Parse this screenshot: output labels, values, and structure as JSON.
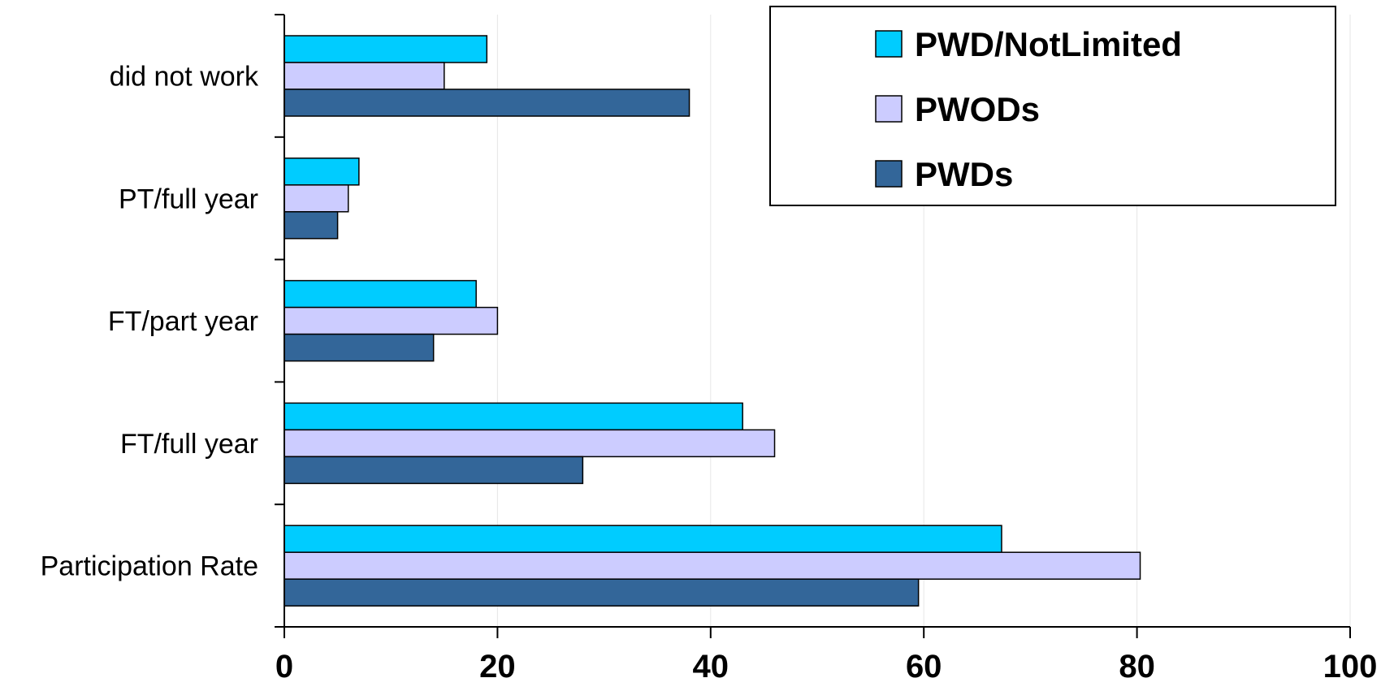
{
  "chart_data": {
    "type": "bar",
    "orientation": "horizontal",
    "categories": [
      "did not work",
      "PT/full year",
      "FT/part year",
      "FT/full year",
      "Participation Rate"
    ],
    "series": [
      {
        "name": "PWD/NotLimited",
        "color": "#00CCFF",
        "values": [
          19,
          7,
          18,
          43,
          67.3
        ]
      },
      {
        "name": "PWODs",
        "color": "#CCCCFF",
        "values": [
          15,
          6,
          20,
          46,
          80.3
        ]
      },
      {
        "name": "PWDs",
        "color": "#336699",
        "values": [
          38,
          5,
          14,
          28,
          59.5
        ]
      }
    ],
    "title": "",
    "xlabel": "",
    "ylabel": "",
    "xlim": [
      0,
      100
    ],
    "xticks": [
      0,
      20,
      40,
      60,
      80,
      100
    ],
    "xtick_labels": [
      "0",
      "20",
      "40",
      "60",
      "80",
      "100"
    ],
    "grid": true,
    "legend_position": "top-right"
  }
}
